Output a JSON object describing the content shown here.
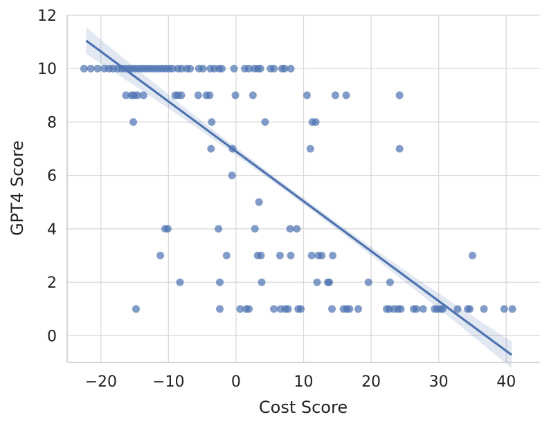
{
  "chart_data": {
    "type": "scatter",
    "title": "",
    "xlabel": "Cost Score",
    "ylabel": "GPT4 Score",
    "xlim": [
      -25,
      45
    ],
    "ylim": [
      -1,
      12
    ],
    "xticks": [
      -20,
      -10,
      0,
      10,
      20,
      30,
      40
    ],
    "yticks": [
      0,
      2,
      4,
      6,
      8,
      10,
      12
    ],
    "xtick_labels": [
      "−20",
      "−10",
      "0",
      "10",
      "20",
      "30",
      "40"
    ],
    "ytick_labels": [
      "0",
      "2",
      "4",
      "6",
      "8",
      "10",
      "12"
    ],
    "grid": true,
    "colors": {
      "point": "#4c72b0",
      "line": "#4c72b0",
      "band": "#4c72b0"
    },
    "regression": {
      "x": [
        -22.2,
        40.8
      ],
      "y": [
        11.05,
        -0.72
      ],
      "ci_halfwidth_ends": 0.5,
      "ci_halfwidth_center": 0.12
    },
    "points": [
      {
        "x": -22.5,
        "y": 10
      },
      {
        "x": -21.5,
        "y": 10
      },
      {
        "x": -20.5,
        "y": 10
      },
      {
        "x": -19.5,
        "y": 10
      },
      {
        "x": -18.8,
        "y": 10
      },
      {
        "x": -18.2,
        "y": 10
      },
      {
        "x": -17.5,
        "y": 10
      },
      {
        "x": -16.9,
        "y": 10
      },
      {
        "x": -16.4,
        "y": 10
      },
      {
        "x": -15.9,
        "y": 10
      },
      {
        "x": -15.4,
        "y": 10
      },
      {
        "x": -14.9,
        "y": 10
      },
      {
        "x": -14.4,
        "y": 10
      },
      {
        "x": -13.9,
        "y": 10
      },
      {
        "x": -13.4,
        "y": 10
      },
      {
        "x": -12.9,
        "y": 10
      },
      {
        "x": -12.4,
        "y": 10
      },
      {
        "x": -11.9,
        "y": 10
      },
      {
        "x": -11.4,
        "y": 10
      },
      {
        "x": -10.9,
        "y": 10
      },
      {
        "x": -10.4,
        "y": 10
      },
      {
        "x": -9.9,
        "y": 10
      },
      {
        "x": -9.4,
        "y": 10
      },
      {
        "x": -8.6,
        "y": 10
      },
      {
        "x": -8.1,
        "y": 10
      },
      {
        "x": -7.3,
        "y": 10
      },
      {
        "x": -6.8,
        "y": 10
      },
      {
        "x": -5.5,
        "y": 10
      },
      {
        "x": -4.9,
        "y": 10
      },
      {
        "x": -3.8,
        "y": 10
      },
      {
        "x": -3.2,
        "y": 10
      },
      {
        "x": -2.5,
        "y": 10
      },
      {
        "x": -2.1,
        "y": 10
      },
      {
        "x": -0.3,
        "y": 10
      },
      {
        "x": 1.3,
        "y": 10
      },
      {
        "x": 1.9,
        "y": 10
      },
      {
        "x": 2.7,
        "y": 10
      },
      {
        "x": 3.2,
        "y": 10
      },
      {
        "x": 3.6,
        "y": 10
      },
      {
        "x": 5.1,
        "y": 10
      },
      {
        "x": 5.6,
        "y": 10
      },
      {
        "x": 6.8,
        "y": 10
      },
      {
        "x": 7.2,
        "y": 10
      },
      {
        "x": 8.1,
        "y": 10
      },
      {
        "x": -16.3,
        "y": 9
      },
      {
        "x": -15.5,
        "y": 9
      },
      {
        "x": -15.1,
        "y": 9
      },
      {
        "x": -14.6,
        "y": 9
      },
      {
        "x": -13.7,
        "y": 9
      },
      {
        "x": -9.0,
        "y": 9
      },
      {
        "x": -8.6,
        "y": 9
      },
      {
        "x": -8.1,
        "y": 9
      },
      {
        "x": -5.6,
        "y": 9
      },
      {
        "x": -4.4,
        "y": 9
      },
      {
        "x": -3.9,
        "y": 9
      },
      {
        "x": -0.1,
        "y": 9
      },
      {
        "x": 2.5,
        "y": 9
      },
      {
        "x": 10.5,
        "y": 9
      },
      {
        "x": 14.7,
        "y": 9
      },
      {
        "x": 16.3,
        "y": 9
      },
      {
        "x": 24.2,
        "y": 9
      },
      {
        "x": -15.2,
        "y": 8
      },
      {
        "x": -3.6,
        "y": 8
      },
      {
        "x": 4.3,
        "y": 8
      },
      {
        "x": 11.3,
        "y": 8
      },
      {
        "x": 11.8,
        "y": 8
      },
      {
        "x": -3.7,
        "y": 7
      },
      {
        "x": -0.5,
        "y": 7
      },
      {
        "x": 11.0,
        "y": 7
      },
      {
        "x": 24.2,
        "y": 7
      },
      {
        "x": -0.6,
        "y": 6
      },
      {
        "x": 3.4,
        "y": 5
      },
      {
        "x": -10.5,
        "y": 4
      },
      {
        "x": -10.1,
        "y": 4
      },
      {
        "x": -2.6,
        "y": 4
      },
      {
        "x": 2.8,
        "y": 4
      },
      {
        "x": 8.0,
        "y": 4
      },
      {
        "x": 9.0,
        "y": 4
      },
      {
        "x": -11.2,
        "y": 3
      },
      {
        "x": -1.4,
        "y": 3
      },
      {
        "x": 3.2,
        "y": 3
      },
      {
        "x": 3.7,
        "y": 3
      },
      {
        "x": 6.5,
        "y": 3
      },
      {
        "x": 8.1,
        "y": 3
      },
      {
        "x": 11.2,
        "y": 3
      },
      {
        "x": 12.2,
        "y": 3
      },
      {
        "x": 12.7,
        "y": 3
      },
      {
        "x": 14.3,
        "y": 3
      },
      {
        "x": 35.0,
        "y": 3
      },
      {
        "x": -8.3,
        "y": 2
      },
      {
        "x": -2.4,
        "y": 2
      },
      {
        "x": 3.8,
        "y": 2
      },
      {
        "x": 12.0,
        "y": 2
      },
      {
        "x": 13.6,
        "y": 2
      },
      {
        "x": 13.8,
        "y": 2
      },
      {
        "x": 19.6,
        "y": 2
      },
      {
        "x": 22.8,
        "y": 2
      },
      {
        "x": -14.8,
        "y": 1
      },
      {
        "x": -2.4,
        "y": 1
      },
      {
        "x": 0.6,
        "y": 1
      },
      {
        "x": 1.5,
        "y": 1
      },
      {
        "x": 1.9,
        "y": 1
      },
      {
        "x": 5.6,
        "y": 1
      },
      {
        "x": 6.6,
        "y": 1
      },
      {
        "x": 7.3,
        "y": 1
      },
      {
        "x": 7.7,
        "y": 1
      },
      {
        "x": 9.2,
        "y": 1
      },
      {
        "x": 9.6,
        "y": 1
      },
      {
        "x": 14.2,
        "y": 1
      },
      {
        "x": 15.9,
        "y": 1
      },
      {
        "x": 16.4,
        "y": 1
      },
      {
        "x": 16.8,
        "y": 1
      },
      {
        "x": 18.1,
        "y": 1
      },
      {
        "x": 22.3,
        "y": 1
      },
      {
        "x": 22.7,
        "y": 1
      },
      {
        "x": 23.4,
        "y": 1
      },
      {
        "x": 24.0,
        "y": 1
      },
      {
        "x": 24.4,
        "y": 1
      },
      {
        "x": 26.3,
        "y": 1
      },
      {
        "x": 26.7,
        "y": 1
      },
      {
        "x": 27.7,
        "y": 1
      },
      {
        "x": 29.4,
        "y": 1
      },
      {
        "x": 29.8,
        "y": 1
      },
      {
        "x": 30.3,
        "y": 1
      },
      {
        "x": 30.6,
        "y": 1
      },
      {
        "x": 32.8,
        "y": 1
      },
      {
        "x": 34.3,
        "y": 1
      },
      {
        "x": 34.6,
        "y": 1
      },
      {
        "x": 36.7,
        "y": 1
      },
      {
        "x": 39.7,
        "y": 1
      },
      {
        "x": 40.9,
        "y": 1
      }
    ]
  }
}
